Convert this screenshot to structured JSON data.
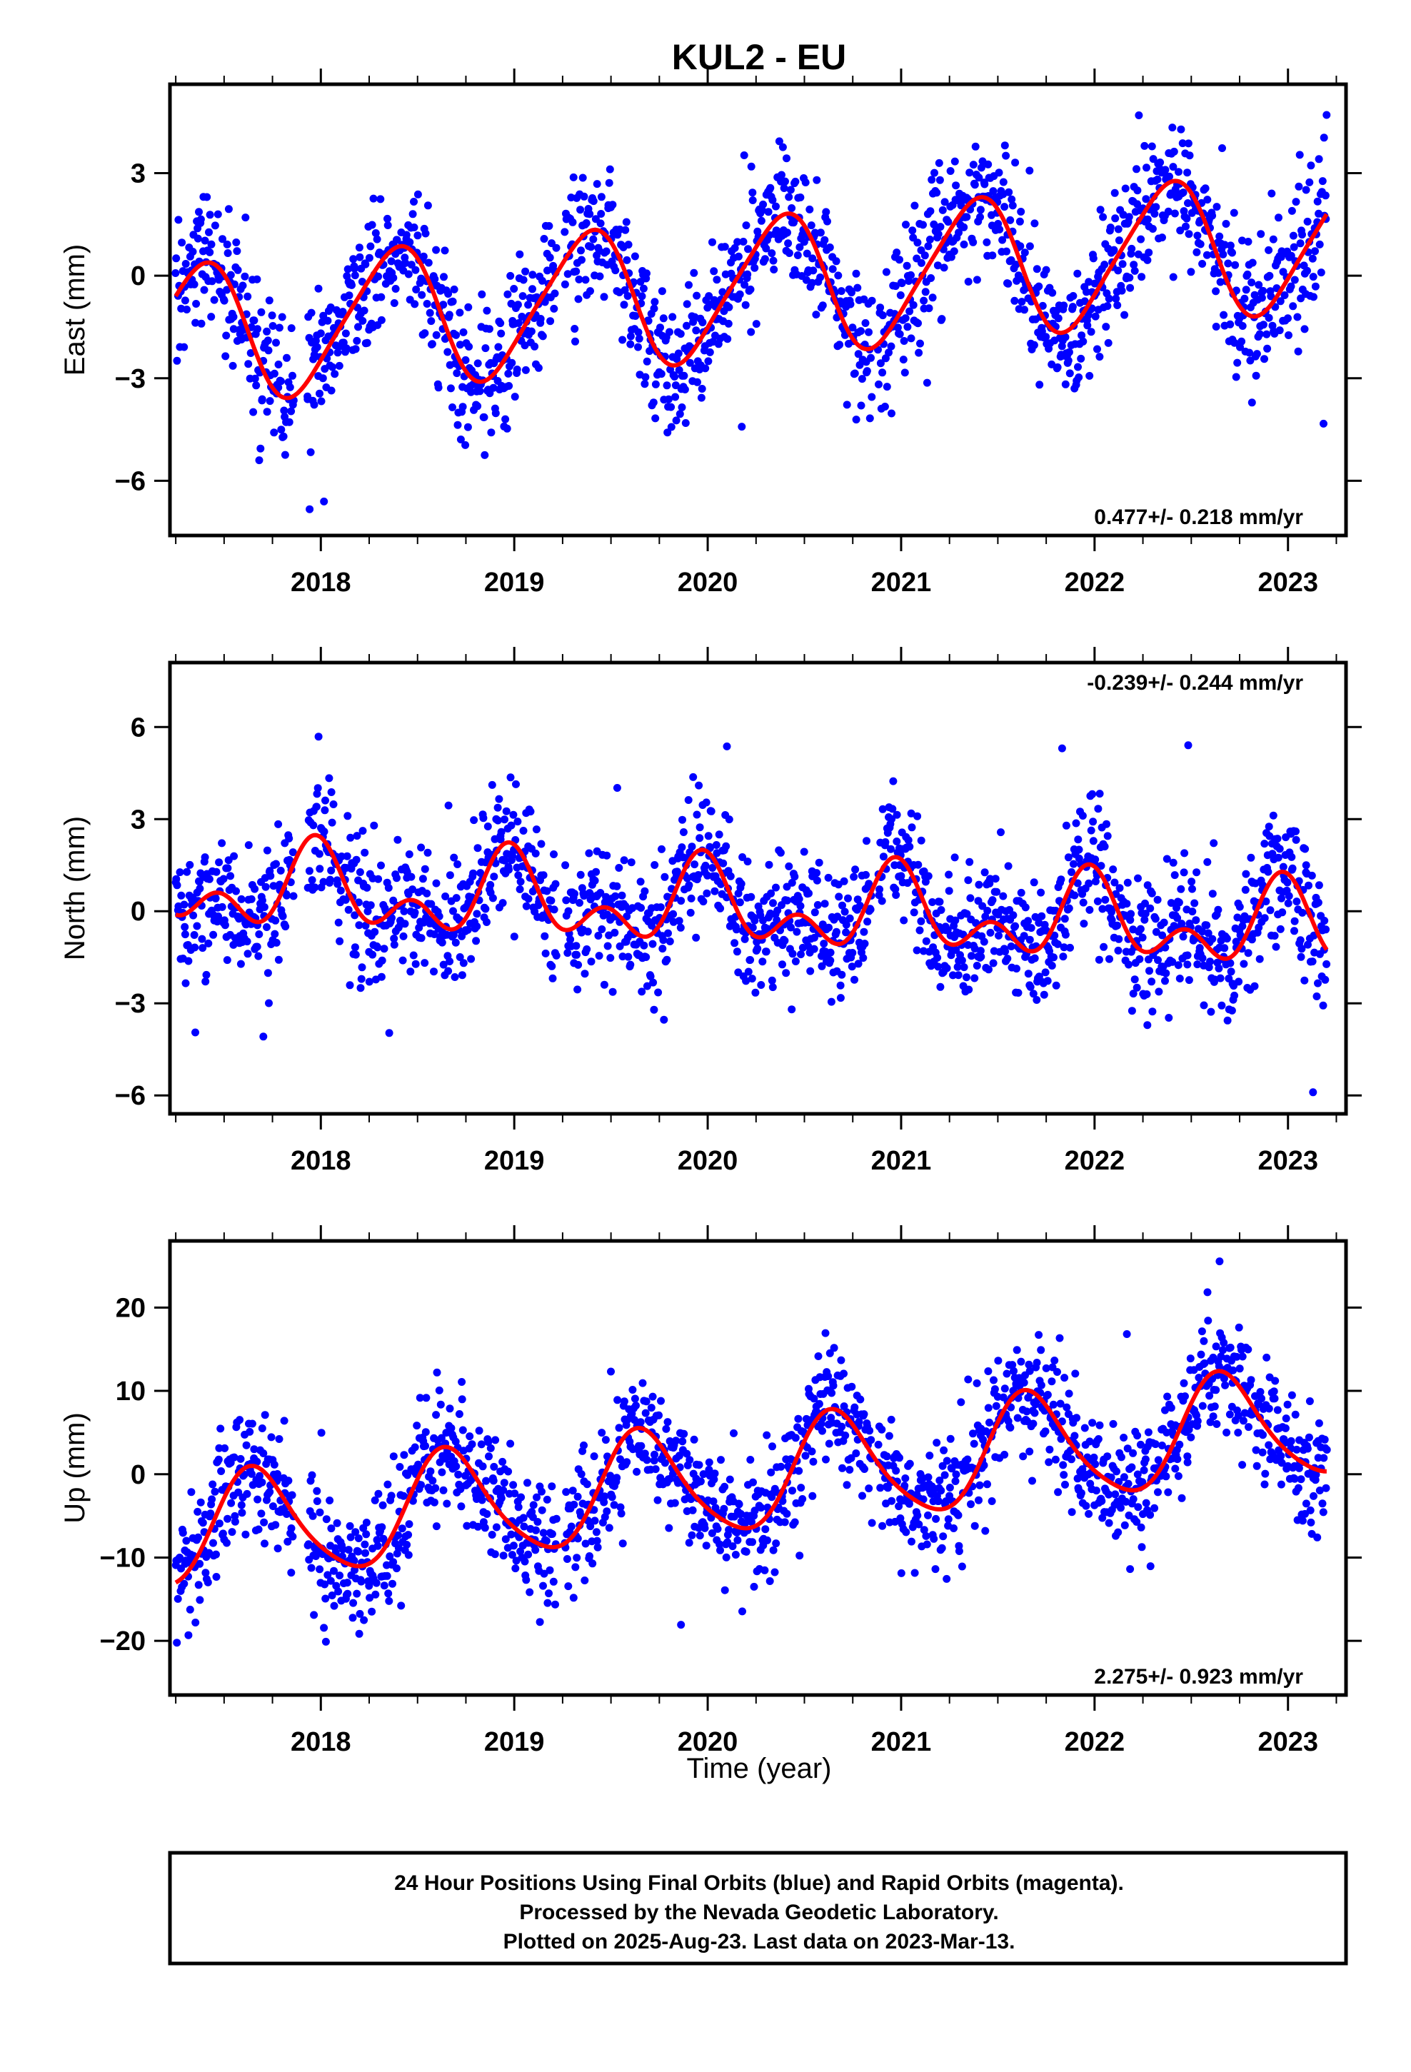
{
  "title": "KUL2 - EU",
  "colors": {
    "data": "#0000ff",
    "model": "#ff0000",
    "frame": "#000000"
  },
  "chart_data": [
    {
      "type": "scatter",
      "ylabel": "East (mm)",
      "xlabel": "",
      "xlim": [
        2017.22,
        2023.3
      ],
      "ylim": [
        -7.6,
        5.6
      ],
      "xticks": [
        2018,
        2019,
        2020,
        2021,
        2022,
        2023
      ],
      "yticks": [
        -6,
        -3,
        0,
        3
      ],
      "tick_labels": [
        "2018",
        "2019",
        "2020",
        "2021",
        "2022",
        "2023"
      ],
      "ytick_labels": [
        "−6",
        "−3",
        "0",
        "3"
      ],
      "rate_text": "0.477+/- 0.218 mm/yr",
      "rate_position": "bottom-right",
      "model": {
        "mean": -0.35,
        "trend": 0.477,
        "ref_year": 2020.2,
        "amp1": 2.0,
        "phase1": 2018.37,
        "amp2": 0.3,
        "phase2": 2018.0
      },
      "scatter": {
        "count": 1700,
        "noise": 1.0,
        "gaps": [
          [
            2017.86,
            2017.93
          ],
          [
            2019.22,
            2019.26
          ],
          [
            2020.85,
            2020.88
          ]
        ]
      },
      "series": [
        {
          "name": "",
          "role": "daily positions",
          "color": "#0000ff",
          "x_range": [
            2017.25,
            2023.2
          ]
        },
        {
          "name": "",
          "role": "fitted model",
          "color": "#ff0000",
          "x_range": [
            2017.25,
            2023.2
          ]
        }
      ]
    },
    {
      "type": "scatter",
      "ylabel": "North (mm)",
      "xlabel": "",
      "xlim": [
        2017.22,
        2023.3
      ],
      "ylim": [
        -6.6,
        8.1
      ],
      "xticks": [
        2018,
        2019,
        2020,
        2021,
        2022,
        2023
      ],
      "yticks": [
        -6,
        -3,
        0,
        3,
        6
      ],
      "tick_labels": [
        "2018",
        "2019",
        "2020",
        "2021",
        "2022",
        "2023"
      ],
      "ytick_labels": [
        "−6",
        "−3",
        "0",
        "3",
        "6"
      ],
      "rate_text": "-0.239+/- 0.244 mm/yr",
      "rate_position": "top-right",
      "model": {
        "mean": 0.1,
        "trend": -0.239,
        "ref_year": 2020.2,
        "amp1": 1.0,
        "phase1": 2017.98,
        "amp2": 0.85,
        "phase2": 2017.97
      },
      "scatter": {
        "count": 1700,
        "noise": 1.05,
        "gaps": [
          [
            2017.86,
            2017.93
          ],
          [
            2019.22,
            2019.26
          ],
          [
            2020.85,
            2020.88
          ]
        ]
      },
      "series": [
        {
          "name": "",
          "role": "daily positions",
          "color": "#0000ff",
          "x_range": [
            2017.25,
            2023.2
          ]
        },
        {
          "name": "",
          "role": "fitted model",
          "color": "#ff0000",
          "x_range": [
            2017.25,
            2023.2
          ]
        }
      ]
    },
    {
      "type": "scatter",
      "ylabel": "Up (mm)",
      "xlabel": "Time (year)",
      "xlim": [
        2017.22,
        2023.3
      ],
      "ylim": [
        -26.5,
        28.0
      ],
      "xticks": [
        2018,
        2019,
        2020,
        2021,
        2022,
        2023
      ],
      "yticks": [
        -20,
        -10,
        0,
        10,
        20
      ],
      "tick_labels": [
        "2018",
        "2019",
        "2020",
        "2021",
        "2022",
        "2023"
      ],
      "ytick_labels": [
        "−20",
        "−10",
        "0",
        "10",
        "20"
      ],
      "rate_text": "2.275+/- 0.923 mm/yr",
      "rate_position": "bottom-right",
      "model": {
        "mean": -0.5,
        "trend": 2.275,
        "ref_year": 2020.2,
        "amp1": 6.5,
        "phase1": 2017.66,
        "amp2": 1.0,
        "phase2": 2017.6
      },
      "scatter": {
        "count": 1700,
        "noise": 3.7,
        "gaps": [
          [
            2017.86,
            2017.93
          ],
          [
            2019.22,
            2019.26
          ],
          [
            2020.85,
            2020.88
          ]
        ]
      },
      "series": [
        {
          "name": "",
          "role": "daily positions",
          "color": "#0000ff",
          "x_range": [
            2017.25,
            2023.2
          ]
        },
        {
          "name": "",
          "role": "fitted model",
          "color": "#ff0000",
          "x_range": [
            2017.25,
            2023.2
          ]
        }
      ]
    }
  ],
  "footer": {
    "line1": "24 Hour Positions Using Final Orbits (blue) and Rapid Orbits (magenta).",
    "line2": "Processed by the Nevada Geodetic Laboratory.",
    "line3": "Plotted on 2025-Aug-23. Last data on 2023-Mar-13."
  }
}
